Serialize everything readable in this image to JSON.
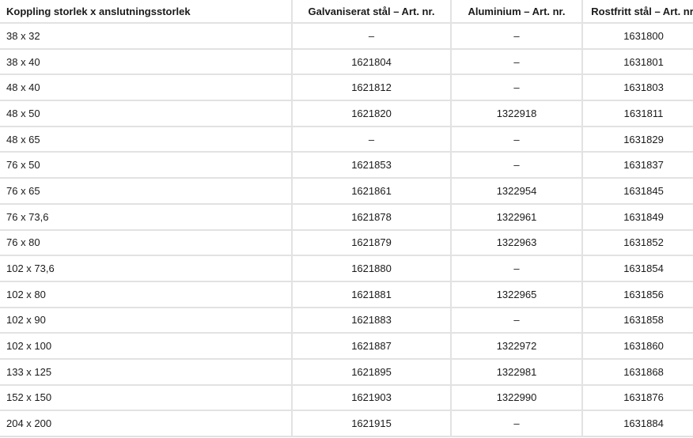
{
  "table": {
    "headers": [
      "Koppling storlek x anslutningsstorlek",
      "Galvaniserat stål – Art. nr.",
      "Aluminium – Art. nr.",
      "Rostfritt stål – Art. nr."
    ],
    "rows": [
      [
        "38 x 32",
        "–",
        "–",
        "1631800"
      ],
      [
        "38 x 40",
        "1621804",
        "–",
        "1631801"
      ],
      [
        "48 x 40",
        "1621812",
        "–",
        "1631803"
      ],
      [
        "48 x 50",
        "1621820",
        "1322918",
        "1631811"
      ],
      [
        "48 x 65",
        "–",
        "–",
        "1631829"
      ],
      [
        "76 x 50",
        "1621853",
        "–",
        "1631837"
      ],
      [
        "76 x 65",
        "1621861",
        "1322954",
        "1631845"
      ],
      [
        "76 x 73,6",
        "1621878",
        "1322961",
        "1631849"
      ],
      [
        "76 x 80",
        "1621879",
        "1322963",
        "1631852"
      ],
      [
        "102 x 73,6",
        "1621880",
        "–",
        "1631854"
      ],
      [
        "102 x 80",
        "1621881",
        "1322965",
        "1631856"
      ],
      [
        "102 x 90",
        "1621883",
        "–",
        "1631858"
      ],
      [
        "102 x 100",
        "1621887",
        "1322972",
        "1631860"
      ],
      [
        "133 x 125",
        "1621895",
        "1322981",
        "1631868"
      ],
      [
        "152 x 150",
        "1621903",
        "1322990",
        "1631876"
      ],
      [
        "204 x 200",
        "1621915",
        "–",
        "1631884"
      ]
    ]
  }
}
